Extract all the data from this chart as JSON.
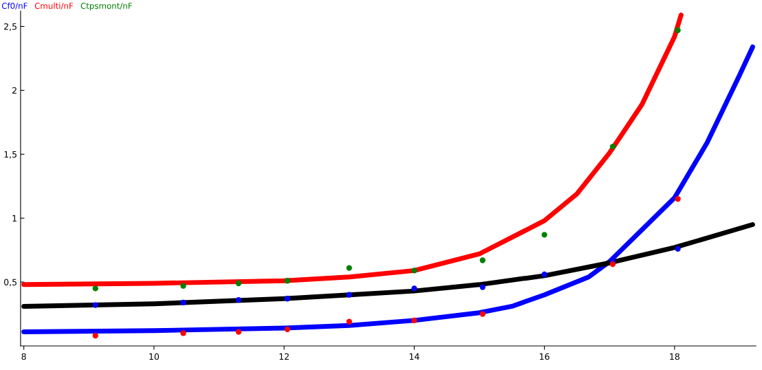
{
  "chart_data": {
    "type": "scatter",
    "xlim": [
      7.95,
      19.25
    ],
    "ylim": [
      0,
      2.62
    ],
    "xticks": [
      8,
      10,
      12,
      14,
      16,
      18
    ],
    "yticks": [
      {
        "value": 0.5,
        "label": "0,5"
      },
      {
        "value": 1,
        "label": "1"
      },
      {
        "value": 1.5,
        "label": "1,5"
      },
      {
        "value": 2,
        "label": "2"
      },
      {
        "value": 2.5,
        "label": "2,5"
      }
    ],
    "x": [
      9.1,
      10.45,
      11.3,
      12.05,
      13.0,
      14.0,
      15.05,
      16.0,
      17.05,
      18.05
    ],
    "marker": "circle",
    "grid": false,
    "series": [
      {
        "name": "Cf0/nF",
        "color": "#0000ff",
        "values": [
          0.32,
          0.34,
          0.36,
          0.37,
          0.4,
          0.45,
          0.46,
          0.56,
          0.66,
          0.76
        ]
      },
      {
        "name": "Cmulti/nF",
        "color": "#ff0000",
        "values": [
          0.08,
          0.1,
          0.11,
          0.13,
          0.19,
          0.2,
          0.25,
          null,
          0.64,
          1.15
        ]
      },
      {
        "name": "Ctpsmont/nF",
        "color": "#008000",
        "values": [
          0.45,
          0.47,
          0.49,
          0.51,
          0.61,
          0.59,
          0.67,
          0.87,
          1.56,
          2.47
        ]
      },
      {
        "type": "line",
        "marker": "none",
        "color": "#ff0000",
        "x": [
          8,
          10,
          12,
          13,
          14,
          15,
          16,
          16.5,
          17,
          17.5,
          18,
          18.1
        ],
        "values": [
          0.48,
          0.49,
          0.51,
          0.54,
          0.59,
          0.72,
          0.98,
          1.19,
          1.51,
          1.89,
          2.42,
          2.59
        ]
      },
      {
        "type": "line",
        "marker": "none",
        "color": "#0000ff",
        "x": [
          8,
          10,
          12,
          13,
          14,
          15,
          15.5,
          16,
          16.68,
          17,
          17.5,
          18,
          18.5,
          19,
          19.2
        ],
        "values": [
          0.11,
          0.12,
          0.14,
          0.16,
          0.2,
          0.26,
          0.31,
          0.4,
          0.54,
          0.66,
          0.91,
          1.16,
          1.59,
          2.12,
          2.34
        ]
      },
      {
        "type": "line",
        "marker": "none",
        "color": "#000000",
        "x": [
          8,
          10,
          12,
          13,
          14,
          15,
          16,
          17,
          18,
          19.2
        ],
        "values": [
          0.31,
          0.33,
          0.37,
          0.4,
          0.43,
          0.48,
          0.55,
          0.65,
          0.77,
          0.95
        ]
      }
    ]
  }
}
